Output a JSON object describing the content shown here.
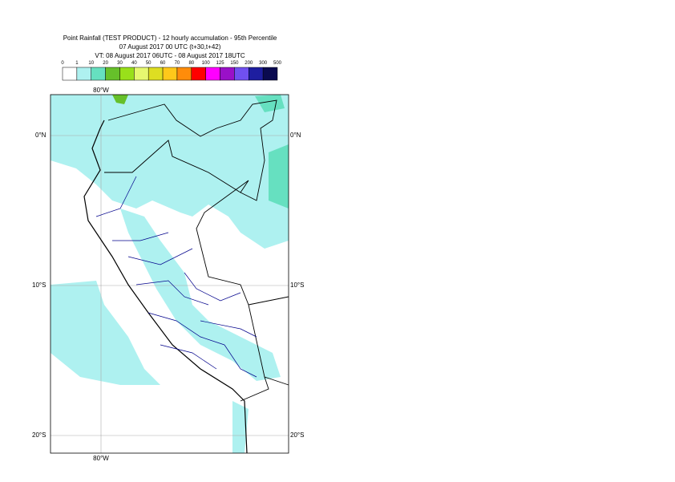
{
  "header": {
    "title": "Point Rainfall (TEST PRODUCT) - 12 hourly accumulation - 95th Percentile",
    "base": "07 August 2017 00 UTC (t+30,t+42)",
    "valid": "VT: 08 August 2017 06UTC - 08 August 2017 18UTC"
  },
  "legend": {
    "ticks": [
      0,
      1,
      10,
      20,
      30,
      40,
      50,
      60,
      70,
      80,
      100,
      125,
      150,
      200,
      300,
      500
    ],
    "colors": [
      "#ffffff",
      "#aef1f0",
      "#66e0c0",
      "#66c02a",
      "#99e01a",
      "#e6f870",
      "#dede22",
      "#ffc81a",
      "#ff8c0a",
      "#ff0000",
      "#ff00ff",
      "#9a10c8",
      "#7050f0",
      "#1e1ea0",
      "#0a0a50"
    ]
  },
  "map": {
    "lat_labels": [
      "0°N",
      "10°S",
      "20°S"
    ],
    "lon_labels": [
      "80°W"
    ]
  }
}
